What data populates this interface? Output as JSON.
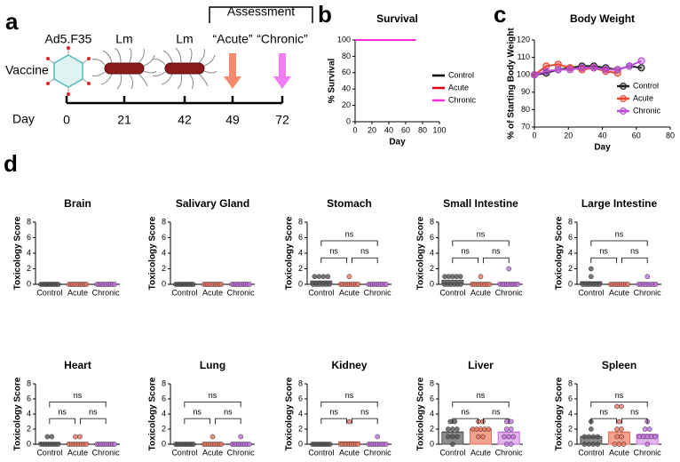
{
  "panel_labels": [
    "a",
    "b",
    "c",
    "d"
  ],
  "diagram": {
    "title": "Assessment",
    "row_labels": [
      "Vaccine",
      "Day"
    ],
    "vaccines": [
      "Ad5.F35",
      "Lm",
      "Lm"
    ],
    "timepoints": [
      "“Acute”",
      "“Chronic”"
    ],
    "days": [
      "0",
      "21",
      "42",
      "49",
      "72"
    ]
  },
  "chart_data": [
    {
      "type": "line",
      "title": "Survival",
      "xlabel": "Day",
      "ylabel": "% Survival",
      "x": [
        0,
        49,
        72
      ],
      "xlim": [
        0,
        100
      ],
      "xticks": [
        0,
        20,
        40,
        60,
        80,
        100
      ],
      "ylim": [
        0,
        100
      ],
      "yticks": [
        0,
        20,
        40,
        60,
        80,
        100
      ],
      "legend": "lower right",
      "series": [
        {
          "name": "Control",
          "color": "#000000",
          "values": [
            100,
            100,
            100
          ]
        },
        {
          "name": "Acute",
          "color": "#e0001b",
          "values": [
            100,
            100,
            null
          ]
        },
        {
          "name": "Chronic",
          "color": "#ff2ad4",
          "values": [
            100,
            100,
            100
          ]
        }
      ]
    },
    {
      "type": "line",
      "title": "Body Weight",
      "xlabel": "Day",
      "ylabel": "% of Starting Body Weight",
      "x": [
        0,
        7,
        14,
        21,
        28,
        35,
        42,
        49,
        56,
        63
      ],
      "xlim": [
        0,
        80
      ],
      "xticks": [
        0,
        20,
        40,
        60,
        80
      ],
      "ylim": [
        70,
        120
      ],
      "yticks": [
        70,
        80,
        90,
        100,
        110,
        120
      ],
      "legend": "right",
      "markers": true,
      "series": [
        {
          "name": "Control",
          "color": "#222222",
          "values": [
            100,
            101,
            103,
            104,
            105,
            105,
            104,
            103,
            105,
            104
          ]
        },
        {
          "name": "Acute",
          "color": "#e8452f",
          "values": [
            100,
            105,
            106,
            104,
            103,
            104,
            102,
            101,
            null,
            null
          ]
        },
        {
          "name": "Chronic",
          "color": "#b94fd8",
          "values": [
            100,
            102,
            103,
            103,
            104,
            104,
            103,
            103,
            105,
            108
          ]
        }
      ]
    },
    {
      "type": "bar",
      "title": "Brain",
      "ylabel": "Toxicology Score",
      "categories": [
        "Control",
        "Acute",
        "Chronic"
      ],
      "ylim": [
        0,
        8
      ],
      "yticks": [
        0,
        2,
        4,
        6,
        8
      ],
      "colors": [
        "#8c8c8c",
        "#f5a38f",
        "#e4b3f0"
      ],
      "point_colors": [
        "#555555",
        "#e8735f",
        "#c36fdc"
      ],
      "values": [
        0,
        0,
        0
      ],
      "points": [
        [
          0,
          0,
          0,
          0,
          0,
          0,
          0,
          0,
          0,
          0
        ],
        [
          0,
          0,
          0,
          0,
          0,
          0,
          0,
          0,
          0,
          0
        ],
        [
          0,
          0,
          0,
          0,
          0,
          0,
          0,
          0,
          0,
          0
        ]
      ]
    },
    {
      "type": "bar",
      "title": "Salivary Gland",
      "ylabel": "Toxicology Score",
      "categories": [
        "Control",
        "Acute",
        "Chronic"
      ],
      "ylim": [
        0,
        8
      ],
      "yticks": [
        0,
        2,
        4,
        6,
        8
      ],
      "colors": [
        "#8c8c8c",
        "#f5a38f",
        "#e4b3f0"
      ],
      "point_colors": [
        "#555555",
        "#e8735f",
        "#c36fdc"
      ],
      "values": [
        0,
        0,
        0
      ],
      "points": [
        [
          0,
          0,
          0,
          0,
          0,
          0,
          0,
          0,
          0,
          0
        ],
        [
          0,
          0,
          0,
          0,
          0,
          0,
          0,
          0,
          0,
          0
        ],
        [
          0,
          0,
          0,
          0,
          0,
          0,
          0,
          0,
          0,
          0
        ]
      ]
    },
    {
      "type": "bar",
      "title": "Stomach",
      "ylabel": "Toxicology Score",
      "categories": [
        "Control",
        "Acute",
        "Chronic"
      ],
      "ylim": [
        0,
        8
      ],
      "yticks": [
        0,
        2,
        4,
        6,
        8
      ],
      "colors": [
        "#8c8c8c",
        "#f5a38f",
        "#e4b3f0"
      ],
      "point_colors": [
        "#555555",
        "#e8735f",
        "#c36fdc"
      ],
      "values": [
        0.4,
        0.1,
        0
      ],
      "annotations": [
        "ns",
        "ns",
        "ns"
      ],
      "points": [
        [
          0,
          0,
          0,
          0,
          0,
          0,
          1,
          1,
          1,
          1
        ],
        [
          0,
          0,
          0,
          0,
          0,
          0,
          0,
          0,
          0,
          1
        ],
        [
          0,
          0,
          0,
          0,
          0,
          0,
          0,
          0,
          0,
          0
        ]
      ]
    },
    {
      "type": "bar",
      "title": "Small Intestine",
      "ylabel": "Toxicology Score",
      "categories": [
        "Control",
        "Acute",
        "Chronic"
      ],
      "ylim": [
        0,
        8
      ],
      "yticks": [
        0,
        2,
        4,
        6,
        8
      ],
      "colors": [
        "#8c8c8c",
        "#f5a38f",
        "#e4b3f0"
      ],
      "point_colors": [
        "#555555",
        "#e8735f",
        "#c36fdc"
      ],
      "values": [
        0.5,
        0.1,
        0.2
      ],
      "annotations": [
        "ns",
        "ns",
        "ns"
      ],
      "points": [
        [
          0,
          0,
          0,
          0,
          0,
          0,
          1,
          1,
          1,
          1,
          1
        ],
        [
          0,
          0,
          0,
          0,
          0,
          0,
          0,
          0,
          0,
          1
        ],
        [
          0,
          0,
          0,
          0,
          0,
          0,
          0,
          0,
          0,
          2
        ]
      ]
    },
    {
      "type": "bar",
      "title": "Large Intestine",
      "ylabel": "Toxicology Score",
      "categories": [
        "Control",
        "Acute",
        "Chronic"
      ],
      "ylim": [
        0,
        8
      ],
      "yticks": [
        0,
        2,
        4,
        6,
        8
      ],
      "colors": [
        "#8c8c8c",
        "#f5a38f",
        "#e4b3f0"
      ],
      "point_colors": [
        "#555555",
        "#e8735f",
        "#c36fdc"
      ],
      "values": [
        0.3,
        0,
        0.1
      ],
      "annotations": [
        "ns",
        "ns",
        "ns"
      ],
      "points": [
        [
          0,
          0,
          0,
          0,
          0,
          0,
          0,
          1,
          2
        ],
        [
          0,
          0,
          0,
          0,
          0,
          0,
          0,
          0,
          0
        ],
        [
          0,
          0,
          0,
          0,
          0,
          0,
          0,
          0,
          1
        ]
      ]
    },
    {
      "type": "bar",
      "title": "Heart",
      "ylabel": "Toxicology Score",
      "categories": [
        "Control",
        "Acute",
        "Chronic"
      ],
      "ylim": [
        0,
        8
      ],
      "yticks": [
        0,
        2,
        4,
        6,
        8
      ],
      "colors": [
        "#8c8c8c",
        "#f5a38f",
        "#e4b3f0"
      ],
      "point_colors": [
        "#555555",
        "#e8735f",
        "#c36fdc"
      ],
      "values": [
        0.2,
        0.2,
        0
      ],
      "annotations": [
        "ns",
        "ns",
        "ns"
      ],
      "points": [
        [
          0,
          0,
          0,
          0,
          0,
          0,
          0,
          0,
          1,
          1
        ],
        [
          0,
          0,
          0,
          0,
          0,
          0,
          0,
          0,
          1,
          1
        ],
        [
          0,
          0,
          0,
          0,
          0,
          0,
          0,
          0,
          0,
          0
        ]
      ]
    },
    {
      "type": "bar",
      "title": "Lung",
      "ylabel": "Toxicology Score",
      "categories": [
        "Control",
        "Acute",
        "Chronic"
      ],
      "ylim": [
        0,
        8
      ],
      "yticks": [
        0,
        2,
        4,
        6,
        8
      ],
      "colors": [
        "#8c8c8c",
        "#f5a38f",
        "#e4b3f0"
      ],
      "point_colors": [
        "#555555",
        "#e8735f",
        "#c36fdc"
      ],
      "values": [
        0,
        0.1,
        0.1
      ],
      "annotations": [
        "ns",
        "ns",
        "ns"
      ],
      "points": [
        [
          0,
          0,
          0,
          0,
          0,
          0,
          0,
          0,
          0,
          0
        ],
        [
          0,
          0,
          0,
          0,
          0,
          0,
          0,
          0,
          0,
          1
        ],
        [
          0,
          0,
          0,
          0,
          0,
          0,
          0,
          0,
          0,
          1
        ]
      ]
    },
    {
      "type": "bar",
      "title": "Kidney",
      "ylabel": "Toxicology Score",
      "categories": [
        "Control",
        "Acute",
        "Chronic"
      ],
      "ylim": [
        0,
        8
      ],
      "yticks": [
        0,
        2,
        4,
        6,
        8
      ],
      "colors": [
        "#8c8c8c",
        "#f5a38f",
        "#e4b3f0"
      ],
      "point_colors": [
        "#555555",
        "#e8735f",
        "#c36fdc"
      ],
      "values": [
        0,
        0.3,
        0.1
      ],
      "annotations": [
        "ns",
        "ns",
        "ns"
      ],
      "points": [
        [
          0,
          0,
          0,
          0,
          0,
          0,
          0,
          0,
          0,
          0
        ],
        [
          0,
          0,
          0,
          0,
          0,
          0,
          0,
          0,
          0,
          3
        ],
        [
          0,
          0,
          0,
          0,
          0,
          0,
          0,
          0,
          0,
          1
        ]
      ]
    },
    {
      "type": "bar",
      "title": "Liver",
      "ylabel": "Toxicology Score",
      "categories": [
        "Control",
        "Acute",
        "Chronic"
      ],
      "ylim": [
        0,
        8
      ],
      "yticks": [
        0,
        2,
        4,
        6,
        8
      ],
      "colors": [
        "#8c8c8c",
        "#f5a38f",
        "#e4b3f0"
      ],
      "point_colors": [
        "#555555",
        "#e8735f",
        "#c36fdc"
      ],
      "values": [
        1.6,
        2,
        1.6
      ],
      "annotations": [
        "ns",
        "ns",
        "ns"
      ],
      "points": [
        [
          0,
          1,
          1,
          1,
          2,
          2,
          2,
          3,
          3
        ],
        [
          1,
          1,
          2,
          2,
          2,
          2,
          2,
          3,
          3
        ],
        [
          0,
          0,
          1,
          1,
          1,
          2,
          2,
          3,
          3
        ]
      ]
    },
    {
      "type": "bar",
      "title": "Spleen",
      "ylabel": "Toxicology Score",
      "categories": [
        "Control",
        "Acute",
        "Chronic"
      ],
      "ylim": [
        0,
        8
      ],
      "yticks": [
        0,
        2,
        4,
        6,
        8
      ],
      "colors": [
        "#8c8c8c",
        "#f5a38f",
        "#e4b3f0"
      ],
      "point_colors": [
        "#555555",
        "#e8735f",
        "#c36fdc"
      ],
      "values": [
        1,
        1.6,
        1.3
      ],
      "annotations": [
        "ns",
        "ns",
        "ns"
      ],
      "points": [
        [
          0,
          0,
          0,
          0,
          1,
          1,
          1,
          1,
          2,
          3
        ],
        [
          0,
          0,
          0,
          1,
          1,
          2,
          2,
          3,
          5,
          5
        ],
        [
          0,
          1,
          1,
          1,
          1,
          1,
          2,
          2,
          3
        ]
      ]
    }
  ]
}
